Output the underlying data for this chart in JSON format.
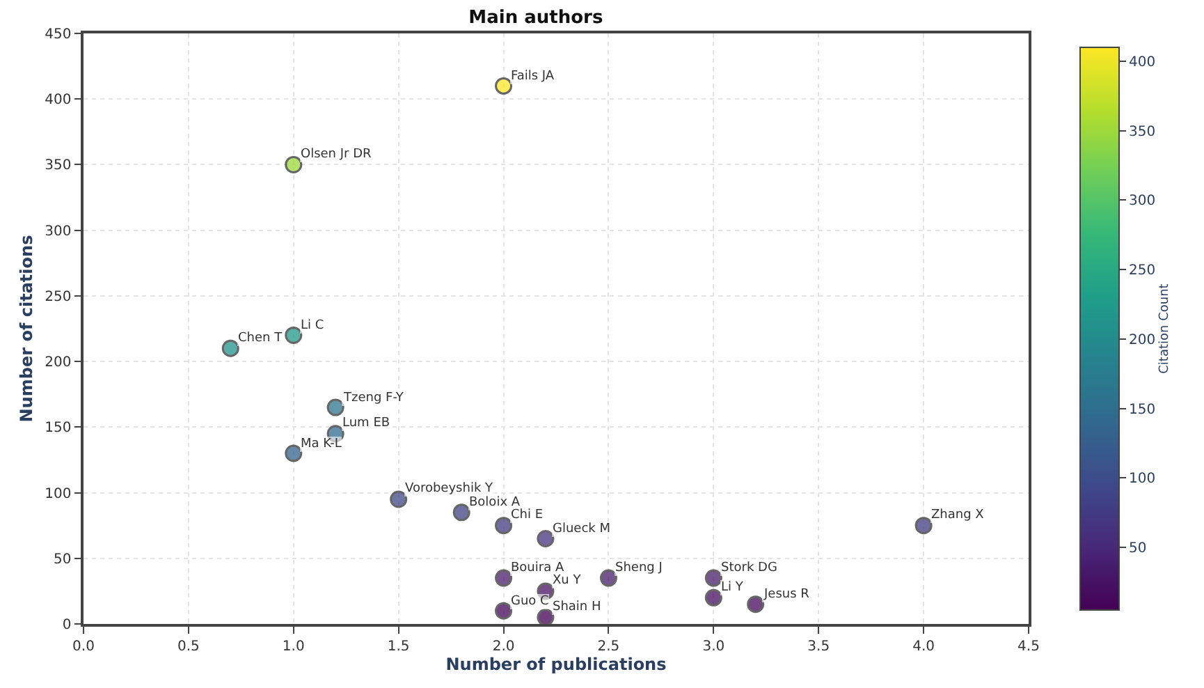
{
  "chart_data": {
    "type": "scatter",
    "title": "Main authors",
    "xlabel": "Number of publications",
    "ylabel": "Number of citations",
    "clabel": "Citation Count",
    "x": [
      2.0,
      1.0,
      1.0,
      0.7,
      1.2,
      1.2,
      1.0,
      1.5,
      1.8,
      2.0,
      2.2,
      4.0,
      2.0,
      2.5,
      3.0,
      2.2,
      3.0,
      3.2,
      2.0,
      2.2
    ],
    "values": [
      410,
      350,
      220,
      210,
      165,
      145,
      130,
      95,
      85,
      75,
      65,
      75,
      35,
      35,
      35,
      25,
      20,
      15,
      10,
      5
    ],
    "cvalues": [
      410,
      350,
      220,
      210,
      165,
      145,
      130,
      95,
      85,
      75,
      65,
      75,
      35,
      35,
      35,
      25,
      20,
      15,
      10,
      5
    ],
    "clim": [
      5,
      410
    ],
    "cticks": [
      50,
      100,
      150,
      200,
      250,
      300,
      350,
      400
    ],
    "xlim": [
      0,
      4.5
    ],
    "xticks": [
      {
        "value": 0,
        "label": "0.0"
      },
      0.5,
      {
        "value": 1,
        "label": "1.0"
      },
      1.5,
      {
        "value": 2,
        "label": "2.0"
      },
      2.5,
      {
        "value": 3,
        "label": "3.0"
      },
      3.5,
      {
        "value": 4,
        "label": "4.0"
      },
      4.5
    ],
    "ylim": [
      0,
      450
    ],
    "yticks": [
      0,
      50,
      100,
      150,
      200,
      250,
      300,
      350,
      400,
      450
    ],
    "grid": true,
    "marker": "circle",
    "annotations": [
      {
        "text": "Fails JA",
        "x": 2.0,
        "y": 410
      },
      {
        "text": "Olsen Jr DR",
        "x": 1.0,
        "y": 350
      },
      {
        "text": "Li C",
        "x": 1.0,
        "y": 220
      },
      {
        "text": "Chen T",
        "x": 0.7,
        "y": 210
      },
      {
        "text": "Tzeng F-Y",
        "x": 1.2,
        "y": 165
      },
      {
        "text": "Lum EB",
        "x": 1.2,
        "y": 145
      },
      {
        "text": "Ma K-L",
        "x": 1.0,
        "y": 130
      },
      {
        "text": "Vorobeyshik Y",
        "x": 1.5,
        "y": 95
      },
      {
        "text": "Boloix A",
        "x": 1.8,
        "y": 85
      },
      {
        "text": "Chi E",
        "x": 2.0,
        "y": 75
      },
      {
        "text": "Glueck M",
        "x": 2.2,
        "y": 65
      },
      {
        "text": "Zhang X",
        "x": 4.0,
        "y": 75
      },
      {
        "text": "Bouira A",
        "x": 2.0,
        "y": 35
      },
      {
        "text": "Sheng J",
        "x": 2.5,
        "y": 35
      },
      {
        "text": "Stork DG",
        "x": 3.0,
        "y": 35
      },
      {
        "text": "Xu Y",
        "x": 2.2,
        "y": 25
      },
      {
        "text": "Li Y",
        "x": 3.0,
        "y": 20
      },
      {
        "text": "Jesus R",
        "x": 3.2,
        "y": 15
      },
      {
        "text": "Guo C",
        "x": 2.0,
        "y": 10
      },
      {
        "text": "Shain H",
        "x": 2.2,
        "y": 5
      }
    ]
  }
}
